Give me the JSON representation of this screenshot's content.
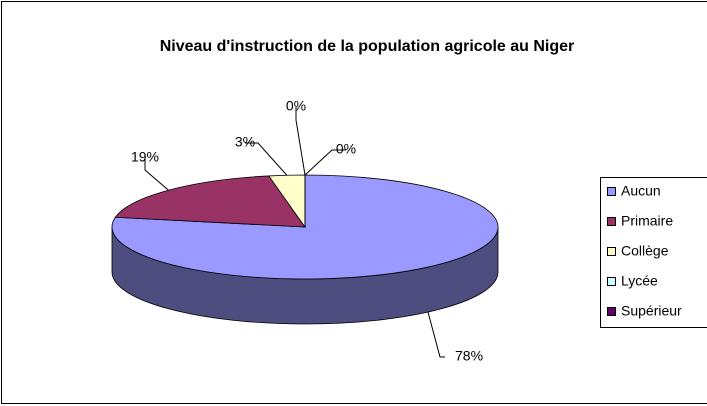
{
  "chart_data": {
    "type": "pie3d",
    "title": "Niveau d'instruction de la population agricole au Niger",
    "categories": [
      "Aucun",
      "Primaire",
      "Collège",
      "Lycée",
      "Supérieur"
    ],
    "values": [
      78,
      19,
      3,
      0,
      0
    ],
    "value_labels": [
      "78%",
      "19%",
      "3%",
      "0%",
      "0%"
    ],
    "colors": [
      "#9999ff",
      "#993366",
      "#ffffcc",
      "#ccffff",
      "#660066"
    ],
    "legend": "right"
  }
}
